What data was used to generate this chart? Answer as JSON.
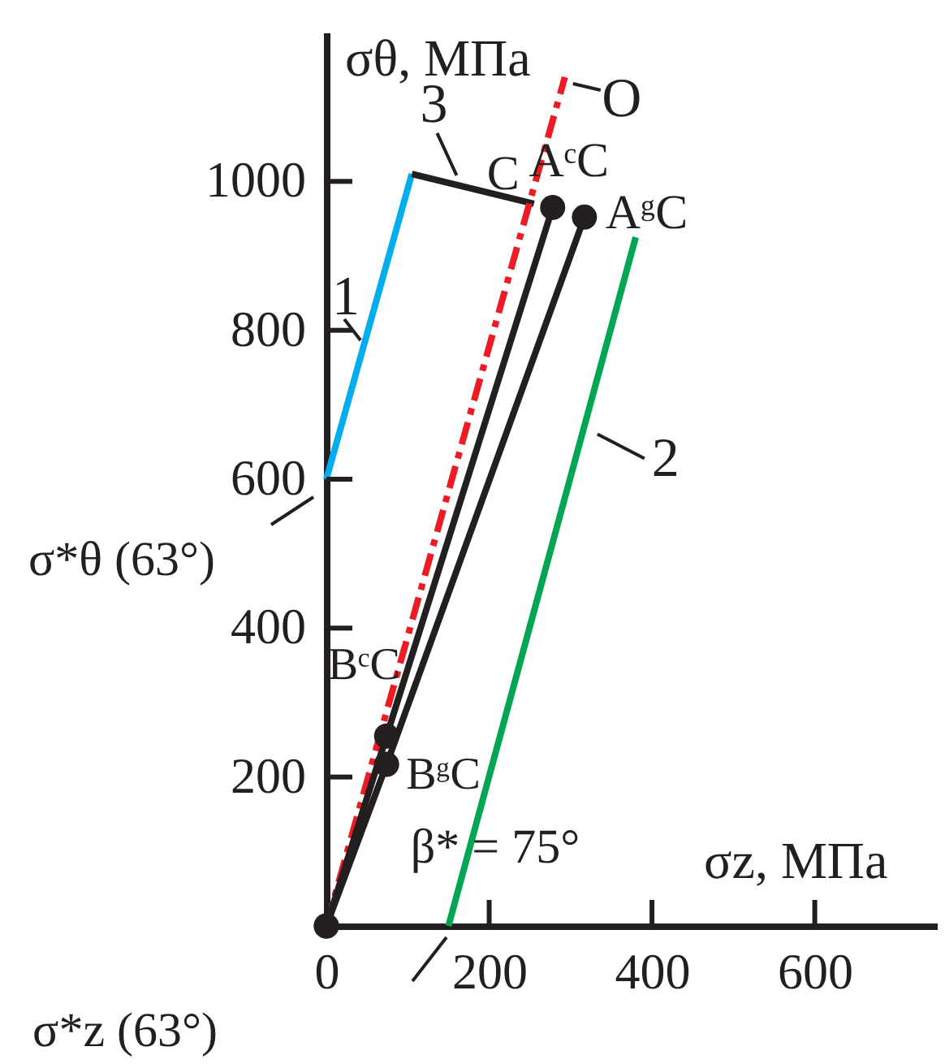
{
  "chart_data": {
    "type": "line",
    "xlabel": "σz, МПа",
    "ylabel": "σθ, МПа",
    "xlim": [
      0,
      750
    ],
    "ylim": [
      0,
      1200
    ],
    "xticks": [
      0,
      200,
      400,
      600
    ],
    "yticks": [
      200,
      400,
      600,
      800,
      1000
    ],
    "grid": false,
    "series": [
      {
        "color": "#00aeef",
        "x": [
          0,
          105
        ],
        "values": [
          600,
          1010
        ]
      },
      {
        "color": "#231f20",
        "x": [
          105,
          255
        ],
        "values": [
          1010,
          970
        ]
      },
      {
        "color": "#ed1c24",
        "x": [
          0,
          293
        ],
        "values": [
          0,
          1140
        ],
        "line_style": "dashed"
      },
      {
        "color": "#00a651",
        "x": [
          150,
          380
        ],
        "values": [
          0,
          925
        ]
      },
      {
        "color": "#231f20",
        "x": [
          0,
          74,
          278
        ],
        "values": [
          0,
          255,
          965
        ],
        "marker": "circle"
      },
      {
        "color": "#231f20",
        "x": [
          0,
          74,
          317
        ],
        "values": [
          0,
          217,
          952
        ],
        "marker": "circle"
      }
    ],
    "annotations": [
      {
        "text": "1",
        "x": 46,
        "y": 780
      },
      {
        "text": "3",
        "x": 160,
        "y": 995
      },
      {
        "text": "O",
        "x": 293,
        "y": 1140
      },
      {
        "text": "2",
        "x": 315,
        "y": 665
      },
      {
        "text": "C",
        "x": 255,
        "y": 970
      },
      {
        "text": "AᶜC",
        "x": 278,
        "y": 965
      },
      {
        "text": "AᵍC",
        "x": 317,
        "y": 952
      },
      {
        "text": "σ*θ (63°)",
        "x": 0,
        "y": 600
      },
      {
        "text": "BᶜC",
        "x": 74,
        "y": 255
      },
      {
        "text": "BᵍC",
        "x": 74,
        "y": 217
      },
      "β* = 75°",
      "σ*z (63°)"
    ]
  }
}
